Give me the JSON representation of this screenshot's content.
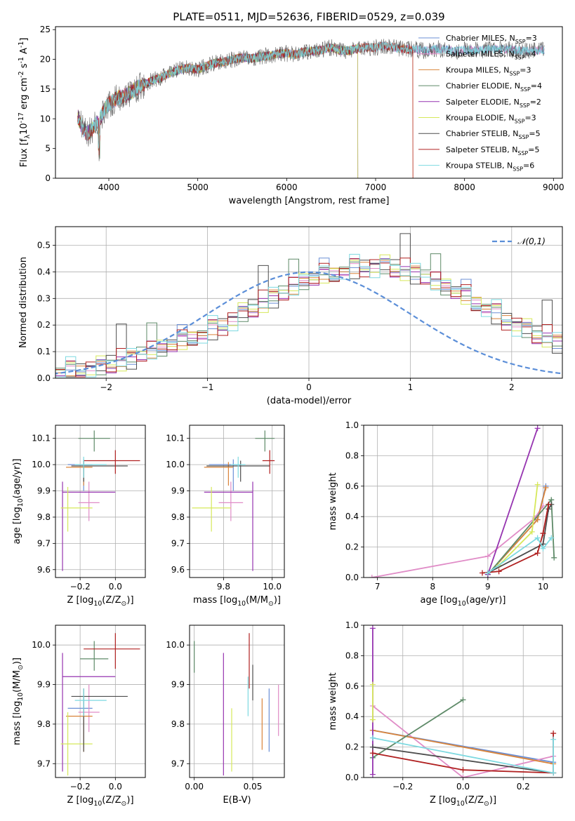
{
  "figure": {
    "title": "PLATE=0511, MJD=52636, FIBERID=0529, z=0.039"
  },
  "colors": {
    "Chabrier MILES": "#6b8fd6",
    "Salpeter MILES": "#e08cc7",
    "Kroupa MILES": "#d9843a",
    "Chabrier ELODIE": "#5e8a68",
    "Salpeter ELODIE": "#9634b0",
    "Kroupa ELODIE": "#d6e85a",
    "Chabrier STELIB": "#4d4d4d",
    "Salpeter STELIB": "#b02020",
    "Kroupa STELIB": "#7dd9e0"
  },
  "chart_data": [
    {
      "id": "spectrum",
      "type": "line",
      "title": "PLATE=0511, MJD=52636, FIBERID=0529, z=0.039",
      "xlabel": "wavelength [Angstrom, rest frame]",
      "ylabel": "Flux [f$_\\lambda$10$^{-17}$ erg cm$^{-2}$ s$^{-1}$ A$^{-1}$]",
      "xlim": [
        3400,
        9100
      ],
      "ylim": [
        0,
        25.5
      ],
      "xticks": [
        4000,
        5000,
        6000,
        7000,
        8000,
        9000
      ],
      "yticks": [
        0,
        5,
        10,
        15,
        20,
        25
      ],
      "grid": false,
      "legend_position": "upper-right",
      "spectrum_x": [
        3650,
        3700,
        3750,
        3800,
        3850,
        3900,
        3950,
        4000,
        4100,
        4200,
        4300,
        4400,
        4500,
        4600,
        4700,
        4800,
        4900,
        5000,
        5100,
        5200,
        5300,
        5400,
        5500,
        5600,
        5700,
        5800,
        5900,
        6000,
        6100,
        6200,
        6300,
        6400,
        6500,
        6600,
        6700,
        6800,
        6900,
        7000,
        7100,
        7200,
        7300,
        7400,
        7500,
        7600,
        7700,
        7800,
        7900,
        8000,
        8100,
        8200,
        8300,
        8400,
        8500,
        8600,
        8700,
        8800,
        8900
      ],
      "spectrum_y": [
        10.5,
        8.5,
        7.5,
        8.0,
        9.0,
        10.0,
        11.5,
        12.5,
        13.5,
        14.0,
        15.0,
        15.8,
        16.5,
        17.0,
        17.8,
        18.3,
        18.5,
        18.3,
        18.9,
        19.4,
        19.6,
        20.0,
        20.3,
        20.1,
        20.4,
        20.6,
        20.9,
        21.0,
        20.8,
        21.3,
        21.4,
        21.6,
        22.0,
        21.5,
        21.5,
        21.8,
        22.0,
        22.0,
        22.3,
        22.0,
        21.8,
        21.7,
        21.6,
        21.4,
        21.8,
        21.6,
        21.3,
        21.6,
        21.5,
        21.6,
        21.7,
        21.7,
        21.7,
        21.5,
        21.4,
        21.5,
        21.6
      ],
      "series": [
        {
          "name": "Chabrier MILES, N$_{SSP}$=3",
          "x_end": 8900
        },
        {
          "name": "Salpeter MILES, N$_{SSP}$=4",
          "x_end": 8900
        },
        {
          "name": "Kroupa MILES, N$_{SSP}$=3",
          "x_end": 7420
        },
        {
          "name": "Chabrier ELODIE, N$_{SSP}$=4",
          "x_end": 6800
        },
        {
          "name": "Salpeter ELODIE, N$_{SSP}$=2",
          "x_end": 6800
        },
        {
          "name": "Kroupa ELODIE, N$_{SSP}$=3",
          "x_end": 6800
        },
        {
          "name": "Chabrier STELIB, N$_{SSP}$=5",
          "x_end": 8900
        },
        {
          "name": "Salpeter STELIB, N$_{SSP}$=5",
          "x_end": 7420
        },
        {
          "name": "Kroupa STELIB, N$_{SSP}$=6",
          "x_end": 8900
        }
      ]
    },
    {
      "id": "residuals",
      "type": "histogram",
      "xlabel": "(data-model)/error",
      "ylabel": "Normed distribution",
      "xlim": [
        -2.5,
        2.5
      ],
      "ylim": [
        0,
        0.57
      ],
      "xticks": [
        -2,
        -1,
        0,
        1,
        2
      ],
      "yticks": [
        0.0,
        0.1,
        0.2,
        0.3,
        0.4,
        0.5
      ],
      "grid": true,
      "legend": "$\\mathcal{N}(0,1)$",
      "legend_position": "upper-right",
      "bin_width": 0.1,
      "bin_start": -2.5,
      "base_histogram": [
        0.02,
        0.025,
        0.03,
        0.035,
        0.04,
        0.05,
        0.06,
        0.07,
        0.09,
        0.1,
        0.11,
        0.12,
        0.13,
        0.15,
        0.16,
        0.18,
        0.2,
        0.22,
        0.24,
        0.26,
        0.28,
        0.3,
        0.32,
        0.34,
        0.36,
        0.37,
        0.38,
        0.39,
        0.4,
        0.41,
        0.42,
        0.42,
        0.42,
        0.41,
        0.4,
        0.39,
        0.38,
        0.36,
        0.34,
        0.32,
        0.3,
        0.28,
        0.26,
        0.24,
        0.22,
        0.2,
        0.18,
        0.16,
        0.15,
        0.13
      ],
      "normal_curve": {
        "mu": 0,
        "sigma": 1
      }
    },
    {
      "id": "age-vs-Z",
      "type": "errorbar",
      "xlabel": "Z [log$_{10}$(Z/Z$_\\odot$)]",
      "ylabel": "age  [log$_{10}$(age/yr)]",
      "xlim": [
        -0.34,
        0.17
      ],
      "ylim": [
        9.57,
        10.15
      ],
      "xticks": [
        -0.2,
        0.0
      ],
      "yticks": [
        9.6,
        9.7,
        9.8,
        9.9,
        10.0,
        10.1
      ],
      "grid": true,
      "points": [
        {
          "series": "Chabrier MILES",
          "x": -0.18,
          "xerr": [
            0.09,
            0.05
          ],
          "y": 10.0,
          "yerr": [
            0.1,
            0.02
          ]
        },
        {
          "series": "Salpeter MILES",
          "x": -0.15,
          "xerr": [
            0.06,
            0.06
          ],
          "y": 9.855,
          "yerr": [
            0.07,
            0.08
          ]
        },
        {
          "series": "Kroupa MILES",
          "x": -0.18,
          "xerr": [
            0.1,
            0.05
          ],
          "y": 9.99,
          "yerr": [
            0.07,
            0.02
          ]
        },
        {
          "series": "Chabrier ELODIE",
          "x": -0.12,
          "xerr": [
            0.09,
            0.09
          ],
          "y": 10.1,
          "yerr": [
            0.05,
            0.03
          ]
        },
        {
          "series": "Salpeter ELODIE",
          "x": -0.3,
          "xerr": [
            0.0,
            0.3
          ],
          "y": 9.895,
          "yerr": [
            0.3,
            0.04
          ]
        },
        {
          "series": "Kroupa ELODIE",
          "x": -0.27,
          "xerr": [
            0.04,
            0.14
          ],
          "y": 9.835,
          "yerr": [
            0.09,
            0.08
          ]
        },
        {
          "series": "Chabrier STELIB",
          "x": -0.18,
          "xerr": [
            0.07,
            0.25
          ],
          "y": 9.995,
          "yerr": [
            0.06,
            0.02
          ]
        },
        {
          "series": "Salpeter STELIB",
          "x": 0.0,
          "xerr": [
            0.18,
            0.14
          ],
          "y": 10.015,
          "yerr": [
            0.05,
            0.04
          ]
        },
        {
          "series": "Kroupa STELIB",
          "x": -0.18,
          "xerr": [
            0.05,
            0.13
          ],
          "y": 10.0,
          "yerr": [
            0.05,
            0.03
          ]
        }
      ]
    },
    {
      "id": "age-vs-mass",
      "type": "errorbar",
      "xlabel": "mass [log$_{10}$(M/M$_\\odot$)]",
      "ylabel": "",
      "xlim": [
        9.66,
        10.05
      ],
      "ylim": [
        9.57,
        10.15
      ],
      "xticks": [
        9.8,
        10.0
      ],
      "yticks": [
        9.6,
        9.7,
        9.8,
        9.9,
        10.0,
        10.1
      ],
      "grid": true,
      "points": [
        {
          "series": "Chabrier MILES",
          "x": 9.84,
          "xerr": [
            0.1,
            0.03
          ],
          "y": 10.0,
          "yerr": [
            0.1,
            0.02
          ]
        },
        {
          "series": "Salpeter MILES",
          "x": 9.83,
          "xerr": [
            0.05,
            0.05
          ],
          "y": 9.855,
          "yerr": [
            0.07,
            0.08
          ]
        },
        {
          "series": "Kroupa MILES",
          "x": 9.82,
          "xerr": [
            0.1,
            0.02
          ],
          "y": 9.99,
          "yerr": [
            0.07,
            0.02
          ]
        },
        {
          "series": "Chabrier ELODIE",
          "x": 9.97,
          "xerr": [
            0.04,
            0.04
          ],
          "y": 10.1,
          "yerr": [
            0.05,
            0.03
          ]
        },
        {
          "series": "Salpeter ELODIE",
          "x": 9.92,
          "xerr": [
            0.2,
            0.0
          ],
          "y": 9.895,
          "yerr": [
            0.3,
            0.04
          ]
        },
        {
          "series": "Kroupa ELODIE",
          "x": 9.75,
          "xerr": [
            0.08,
            0.08
          ],
          "y": 9.835,
          "yerr": [
            0.09,
            0.08
          ]
        },
        {
          "series": "Chabrier STELIB",
          "x": 9.87,
          "xerr": [
            0.14,
            0.12
          ],
          "y": 9.995,
          "yerr": [
            0.06,
            0.02
          ]
        },
        {
          "series": "Salpeter STELIB",
          "x": 9.99,
          "xerr": [
            0.03,
            0.02
          ],
          "y": 10.015,
          "yerr": [
            0.05,
            0.04
          ]
        },
        {
          "series": "Kroupa STELIB",
          "x": 9.86,
          "xerr": [
            0.03,
            0.03
          ],
          "y": 10.0,
          "yerr": [
            0.05,
            0.03
          ]
        }
      ]
    },
    {
      "id": "weight-vs-age",
      "type": "line",
      "xlabel": "age  [log$_{10}$(age/yr)]",
      "ylabel": "mass weight",
      "xlim": [
        6.75,
        10.35
      ],
      "ylim": [
        0.0,
        1.0
      ],
      "xticks": [
        7,
        8,
        9,
        10
      ],
      "yticks": [
        0.0,
        0.2,
        0.4,
        0.6,
        0.8,
        1.0
      ],
      "grid": true,
      "series": [
        {
          "name": "Chabrier MILES",
          "x": [
            9.0,
            9.9,
            10.05
          ],
          "y": [
            0.02,
            0.38,
            0.6
          ]
        },
        {
          "name": "Salpeter MILES",
          "x": [
            6.9,
            9.0,
            9.85,
            10.0
          ],
          "y": [
            0.0,
            0.14,
            0.39,
            0.47
          ]
        },
        {
          "name": "Kroupa MILES",
          "x": [
            9.0,
            9.9,
            10.05
          ],
          "y": [
            0.02,
            0.38,
            0.59
          ]
        },
        {
          "name": "Chabrier ELODIE",
          "x": [
            9.0,
            10.15,
            10.2
          ],
          "y": [
            0.02,
            0.51,
            0.13
          ]
        },
        {
          "name": "Salpeter ELODIE",
          "x": [
            9.0,
            9.9
          ],
          "y": [
            0.02,
            0.98
          ]
        },
        {
          "name": "Kroupa ELODIE",
          "x": [
            9.2,
            9.8,
            9.9
          ],
          "y": [
            0.08,
            0.3,
            0.61
          ]
        },
        {
          "name": "Chabrier STELIB",
          "x": [
            9.0,
            10.0,
            10.1,
            10.15
          ],
          "y": [
            0.03,
            0.22,
            0.45,
            0.48
          ]
        },
        {
          "name": "Salpeter STELIB",
          "x": [
            8.9,
            9.2,
            9.9,
            10.0,
            10.1
          ],
          "y": [
            0.03,
            0.04,
            0.16,
            0.29,
            0.48
          ]
        },
        {
          "name": "Kroupa STELIB",
          "x": [
            9.0,
            9.9,
            10.0,
            10.15
          ],
          "y": [
            0.03,
            0.26,
            0.19,
            0.26
          ]
        }
      ]
    },
    {
      "id": "mass-vs-Z",
      "type": "errorbar",
      "xlabel": "Z [log$_{10}$(Z/Z$_\\odot$)]",
      "ylabel": "mass [log$_{10}$(M/M$_\\odot$)]",
      "xlim": [
        -0.34,
        0.17
      ],
      "ylim": [
        9.665,
        10.05
      ],
      "xticks": [
        -0.2,
        0.0
      ],
      "yticks": [
        9.7,
        9.8,
        9.9,
        10.0
      ],
      "grid": true,
      "points": [
        {
          "series": "Chabrier MILES",
          "x": -0.18,
          "xerr": [
            0.09,
            0.05
          ],
          "y": 9.84,
          "yerr": [
            0.1,
            0.03
          ]
        },
        {
          "series": "Salpeter MILES",
          "x": -0.15,
          "xerr": [
            0.06,
            0.06
          ],
          "y": 9.83,
          "yerr": [
            0.05,
            0.07
          ]
        },
        {
          "series": "Kroupa MILES",
          "x": -0.18,
          "xerr": [
            0.1,
            0.05
          ],
          "y": 9.82,
          "yerr": [
            0.09,
            0.02
          ]
        },
        {
          "series": "Chabrier ELODIE",
          "x": -0.12,
          "xerr": [
            0.08,
            0.08
          ],
          "y": 9.965,
          "yerr": [
            0.03,
            0.045
          ]
        },
        {
          "series": "Salpeter ELODIE",
          "x": -0.3,
          "xerr": [
            0.0,
            0.3
          ],
          "y": 9.92,
          "yerr": [
            0.24,
            0.06
          ]
        },
        {
          "series": "Kroupa ELODIE",
          "x": -0.27,
          "xerr": [
            0.04,
            0.14
          ],
          "y": 9.75,
          "yerr": [
            0.08,
            0.08
          ]
        },
        {
          "series": "Chabrier STELIB",
          "x": -0.18,
          "xerr": [
            0.07,
            0.25
          ],
          "y": 9.87,
          "yerr": [
            0.14,
            0.02
          ]
        },
        {
          "series": "Salpeter STELIB",
          "x": 0.0,
          "xerr": [
            0.18,
            0.14
          ],
          "y": 9.99,
          "yerr": [
            0.05,
            0.04
          ]
        },
        {
          "series": "Kroupa STELIB",
          "x": -0.18,
          "xerr": [
            0.05,
            0.13
          ],
          "y": 9.86,
          "yerr": [
            0.04,
            0.03
          ]
        }
      ]
    },
    {
      "id": "mass-vs-ebv",
      "type": "errorbar",
      "xlabel": "E(B-V)",
      "ylabel": "",
      "xlim": [
        -0.004,
        0.077
      ],
      "ylim": [
        9.665,
        10.05
      ],
      "xticks": [
        0.0,
        0.05
      ],
      "yticks": [
        9.7,
        9.8,
        9.9,
        10.0
      ],
      "grid": true,
      "points": [
        {
          "series": "Chabrier MILES",
          "x": 0.064,
          "y": 9.81,
          "yerr": [
            0.08,
            0.08
          ]
        },
        {
          "series": "Salpeter MILES",
          "x": 0.072,
          "y": 9.835,
          "yerr": [
            0.065,
            0.065
          ]
        },
        {
          "series": "Kroupa MILES",
          "x": 0.058,
          "y": 9.8,
          "yerr": [
            0.065,
            0.065
          ]
        },
        {
          "series": "Chabrier ELODIE",
          "x": 0.0,
          "y": 9.97,
          "yerr": [
            0.04,
            0.04
          ]
        },
        {
          "series": "Salpeter ELODIE",
          "x": 0.025,
          "y": 9.82,
          "yerr": [
            0.15,
            0.16
          ]
        },
        {
          "series": "Kroupa ELODIE",
          "x": 0.032,
          "y": 9.76,
          "yerr": [
            0.08,
            0.08
          ]
        },
        {
          "series": "Chabrier STELIB",
          "x": 0.05,
          "y": 9.9,
          "yerr": [
            0.04,
            0.05
          ]
        },
        {
          "series": "Salpeter STELIB",
          "x": 0.047,
          "y": 9.96,
          "yerr": [
            0.07,
            0.07
          ]
        },
        {
          "series": "Kroupa STELIB",
          "x": 0.046,
          "y": 9.87,
          "yerr": [
            0.05,
            0.05
          ]
        }
      ]
    },
    {
      "id": "weight-vs-Z",
      "type": "line",
      "xlabel": "Z [log$_{10}$(Z/Z$_\\odot$)]",
      "ylabel": "mass weight",
      "xlim": [
        -0.33,
        0.33
      ],
      "ylim": [
        0.0,
        1.0
      ],
      "xticks": [
        -0.2,
        0.0,
        0.2
      ],
      "yticks": [
        0.0,
        0.2,
        0.4,
        0.6,
        0.8,
        1.0
      ],
      "grid": true,
      "series": [
        {
          "name": "Chabrier MILES",
          "x": [
            -0.3,
            0.3
          ],
          "y": [
            0.31,
            0.1
          ]
        },
        {
          "name": "Salpeter MILES",
          "x": [
            -0.3,
            0.0,
            0.3
          ],
          "y": [
            0.47,
            0.0,
            0.14
          ]
        },
        {
          "name": "Kroupa MILES",
          "x": [
            -0.3,
            0.3
          ],
          "y": [
            0.31,
            0.09
          ]
        },
        {
          "name": "Chabrier ELODIE",
          "x": [
            -0.3,
            0.0
          ],
          "y": [
            0.13,
            0.51
          ]
        },
        {
          "name": "Salpeter ELODIE",
          "x": [
            -0.3,
            -0.3
          ],
          "y": [
            0.02,
            0.98
          ]
        },
        {
          "name": "Kroupa ELODIE",
          "x": [
            -0.3,
            -0.3
          ],
          "y": [
            0.38,
            0.61
          ]
        },
        {
          "name": "Chabrier STELIB",
          "x": [
            -0.3,
            0.3
          ],
          "y": [
            0.2,
            0.03
          ]
        },
        {
          "name": "Salpeter STELIB",
          "x": [
            -0.3,
            0.0,
            0.3,
            0.3
          ],
          "y": [
            0.16,
            0.05,
            0.03,
            0.29
          ]
        },
        {
          "name": "Kroupa STELIB",
          "x": [
            -0.3,
            0.3,
            0.3
          ],
          "y": [
            0.26,
            0.03,
            0.25
          ]
        }
      ]
    }
  ]
}
